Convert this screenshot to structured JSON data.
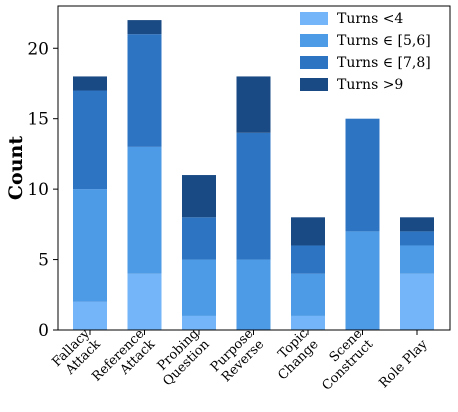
{
  "chart_data": {
    "type": "bar",
    "stacked": true,
    "categories": [
      [
        "Fallacy",
        "Attack"
      ],
      [
        "Reference",
        "Attack"
      ],
      [
        "Probing",
        "Question"
      ],
      [
        "Purpose",
        "Reverse"
      ],
      [
        "Topic",
        "Change"
      ],
      [
        "Scene",
        "Construct"
      ],
      [
        "Role Play"
      ]
    ],
    "series": [
      {
        "name": "Turns <4",
        "color": "#74b4f8",
        "values": [
          2,
          4,
          1,
          0,
          1,
          0,
          4
        ]
      },
      {
        "name": "Turns ∈ [5,6]",
        "color": "#4d9ae6",
        "values": [
          8,
          9,
          4,
          5,
          3,
          7,
          2
        ]
      },
      {
        "name": "Turns ∈ [7,8]",
        "color": "#2d75c3",
        "values": [
          7,
          8,
          3,
          9,
          2,
          8,
          1
        ]
      },
      {
        "name": "Turns >9",
        "color": "#1a4a84",
        "values": [
          1,
          1,
          3,
          4,
          2,
          0,
          1
        ]
      }
    ],
    "title": "",
    "xlabel": "",
    "ylabel": "Count",
    "ylim": [
      0,
      23
    ],
    "yticks": [
      0,
      5,
      10,
      15,
      20
    ],
    "grid": false,
    "legend_position": "top-right"
  }
}
